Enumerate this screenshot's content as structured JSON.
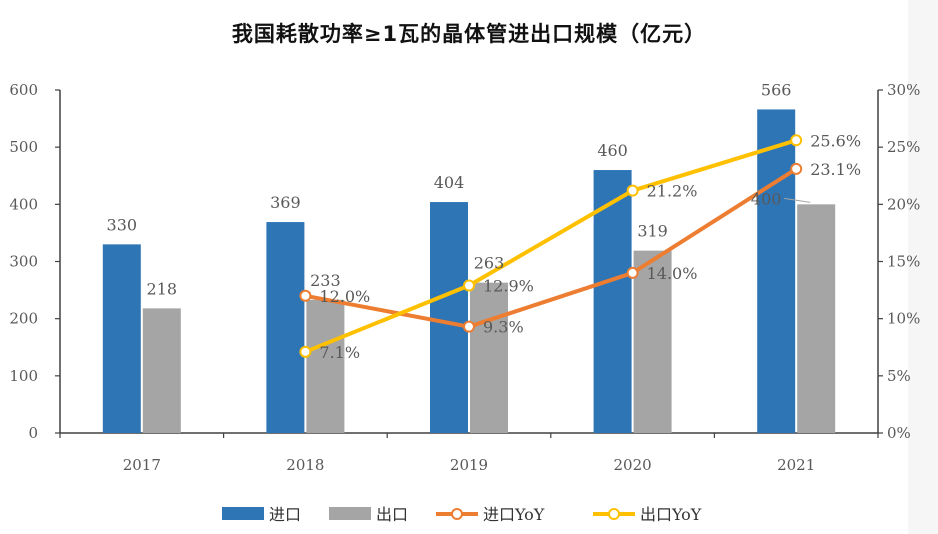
{
  "chart_data": {
    "type": "bar",
    "title": "我国耗散功率≥1瓦的晶体管进出口规模（亿元）",
    "categories": [
      "2017",
      "2018",
      "2019",
      "2020",
      "2021"
    ],
    "ylim": [
      0,
      600
    ],
    "yticks": [
      "0",
      "100",
      "200",
      "300",
      "400",
      "500",
      "600"
    ],
    "y2lim": [
      0,
      30
    ],
    "y2ticks": [
      "0%",
      "5%",
      "10%",
      "15%",
      "20%",
      "25%",
      "30%"
    ],
    "series": [
      {
        "name": "进口",
        "type": "bar",
        "axis": "left",
        "color": "#2E75B6",
        "values": [
          330,
          369,
          404,
          460,
          566
        ],
        "labels": [
          "330",
          "369",
          "404",
          "460",
          "566"
        ]
      },
      {
        "name": "出口",
        "type": "bar",
        "axis": "left",
        "color": "#A5A5A5",
        "values": [
          218,
          233,
          263,
          319,
          400
        ],
        "labels": [
          "218",
          "233",
          "263",
          "319",
          "400"
        ]
      },
      {
        "name": "进口YoY",
        "type": "line",
        "axis": "right",
        "color": "#ED7D31",
        "values": [
          null,
          12.0,
          9.3,
          14.0,
          23.1
        ],
        "labels": [
          "",
          "12.0%",
          "9.3%",
          "14.0%",
          "23.1%"
        ]
      },
      {
        "name": "出口YoY",
        "type": "line",
        "axis": "right",
        "color": "#FFC000",
        "values": [
          null,
          7.1,
          12.9,
          21.2,
          25.6
        ],
        "labels": [
          "",
          "7.1%",
          "12.9%",
          "21.2%",
          "25.6%"
        ]
      }
    ],
    "grid": false,
    "legend_position": "bottom"
  }
}
